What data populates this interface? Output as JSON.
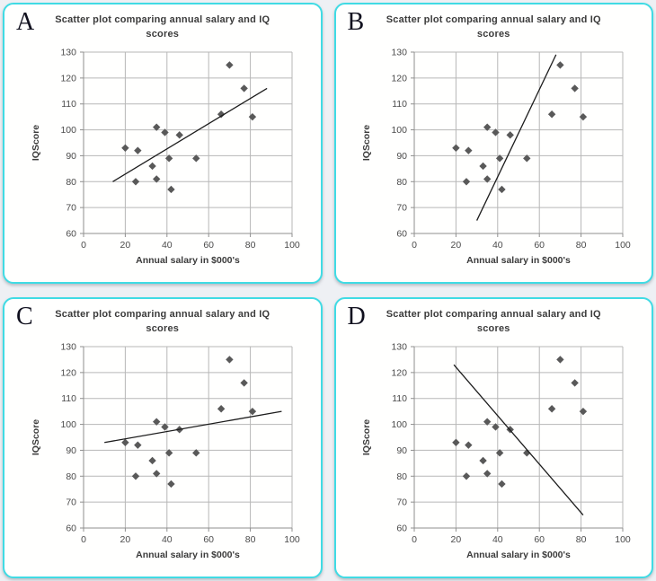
{
  "page": {
    "background_color": "#eef0f4",
    "panel_background": "#fffffe",
    "panel_border_color": "#40dbe4"
  },
  "style": {
    "grid_color": "#b7b7b7",
    "axis_color": "#8f8f8f",
    "marker_color": "#595959",
    "trend_color": "#1c1c1c",
    "title_color": "#3b3b3b",
    "tick_color": "#4a4a4a"
  },
  "chart_data": [
    {
      "label": "A",
      "type": "scatter",
      "title": "Scatter plot comparing annual salary and IQ scores",
      "xlabel": "Annual salary in $000's",
      "ylabel": "IQScore",
      "xlim": [
        0,
        100
      ],
      "ylim": [
        60,
        130
      ],
      "x_ticks": [
        0,
        20,
        40,
        60,
        80,
        100
      ],
      "y_ticks": [
        60,
        70,
        80,
        90,
        100,
        110,
        120,
        130
      ],
      "grid": true,
      "legend": false,
      "points": [
        [
          20,
          93
        ],
        [
          25,
          80
        ],
        [
          26,
          92
        ],
        [
          33,
          86
        ],
        [
          35,
          81
        ],
        [
          35,
          101
        ],
        [
          39,
          99
        ],
        [
          41,
          89
        ],
        [
          42,
          77
        ],
        [
          46,
          98
        ],
        [
          54,
          89
        ],
        [
          66,
          106
        ],
        [
          70,
          125
        ],
        [
          77,
          116
        ],
        [
          81,
          105
        ]
      ],
      "trend_line": {
        "x1": 14,
        "y1": 80,
        "x2": 88,
        "y2": 116
      }
    },
    {
      "label": "B",
      "type": "scatter",
      "title": "Scatter plot comparing annual salary and IQ scores",
      "xlabel": "Annual salary in $000's",
      "ylabel": "IQScore",
      "xlim": [
        0,
        100
      ],
      "ylim": [
        60,
        130
      ],
      "x_ticks": [
        0,
        20,
        40,
        60,
        80,
        100
      ],
      "y_ticks": [
        60,
        70,
        80,
        90,
        100,
        110,
        120,
        130
      ],
      "grid": true,
      "legend": false,
      "points": [
        [
          20,
          93
        ],
        [
          25,
          80
        ],
        [
          26,
          92
        ],
        [
          33,
          86
        ],
        [
          35,
          81
        ],
        [
          35,
          101
        ],
        [
          39,
          99
        ],
        [
          41,
          89
        ],
        [
          42,
          77
        ],
        [
          46,
          98
        ],
        [
          54,
          89
        ],
        [
          66,
          106
        ],
        [
          70,
          125
        ],
        [
          77,
          116
        ],
        [
          81,
          105
        ]
      ],
      "trend_line": {
        "x1": 30,
        "y1": 65,
        "x2": 68,
        "y2": 129
      }
    },
    {
      "label": "C",
      "type": "scatter",
      "title": "Scatter plot comparing annual salary and IQ scores",
      "xlabel": "Annual salary in $000's",
      "ylabel": "IQScore",
      "xlim": [
        0,
        100
      ],
      "ylim": [
        60,
        130
      ],
      "x_ticks": [
        0,
        20,
        40,
        60,
        80,
        100
      ],
      "y_ticks": [
        60,
        70,
        80,
        90,
        100,
        110,
        120,
        130
      ],
      "grid": true,
      "legend": false,
      "points": [
        [
          20,
          93
        ],
        [
          25,
          80
        ],
        [
          26,
          92
        ],
        [
          33,
          86
        ],
        [
          35,
          81
        ],
        [
          35,
          101
        ],
        [
          39,
          99
        ],
        [
          41,
          89
        ],
        [
          42,
          77
        ],
        [
          46,
          98
        ],
        [
          54,
          89
        ],
        [
          66,
          106
        ],
        [
          70,
          125
        ],
        [
          77,
          116
        ],
        [
          81,
          105
        ]
      ],
      "trend_line": {
        "x1": 10,
        "y1": 93,
        "x2": 95,
        "y2": 105
      }
    },
    {
      "label": "D",
      "type": "scatter",
      "title": "Scatter plot comparing annual salary and IQ scores",
      "xlabel": "Annual salary in $000's",
      "ylabel": "IQScore",
      "xlim": [
        0,
        100
      ],
      "ylim": [
        60,
        130
      ],
      "x_ticks": [
        0,
        20,
        40,
        60,
        80,
        100
      ],
      "y_ticks": [
        60,
        70,
        80,
        90,
        100,
        110,
        120,
        130
      ],
      "grid": true,
      "legend": false,
      "points": [
        [
          20,
          93
        ],
        [
          25,
          80
        ],
        [
          26,
          92
        ],
        [
          33,
          86
        ],
        [
          35,
          81
        ],
        [
          35,
          101
        ],
        [
          39,
          99
        ],
        [
          41,
          89
        ],
        [
          42,
          77
        ],
        [
          46,
          98
        ],
        [
          54,
          89
        ],
        [
          66,
          106
        ],
        [
          70,
          125
        ],
        [
          77,
          116
        ],
        [
          81,
          105
        ]
      ],
      "trend_line": {
        "x1": 19,
        "y1": 123,
        "x2": 81,
        "y2": 65
      }
    }
  ]
}
